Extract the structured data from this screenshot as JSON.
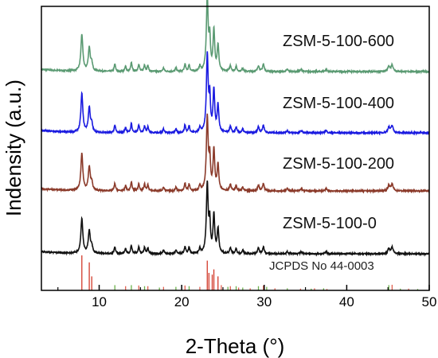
{
  "chart_data": {
    "type": "line",
    "title": "",
    "xlabel": "2-Theta (°)",
    "ylabel": "Indensity (a.u.)",
    "xlim": [
      3,
      50
    ],
    "xticks": [
      10,
      20,
      30,
      40,
      50
    ],
    "y_ticks_shown": false,
    "grid": false,
    "peaks": [
      {
        "x": 7.9,
        "h": 0.5,
        "w": 0.14
      },
      {
        "x": 8.8,
        "h": 0.32,
        "w": 0.14
      },
      {
        "x": 9.1,
        "h": 0.1,
        "w": 0.12
      },
      {
        "x": 11.9,
        "h": 0.1,
        "w": 0.1
      },
      {
        "x": 13.2,
        "h": 0.07,
        "w": 0.1
      },
      {
        "x": 13.9,
        "h": 0.12,
        "w": 0.1
      },
      {
        "x": 14.8,
        "h": 0.1,
        "w": 0.1
      },
      {
        "x": 15.5,
        "h": 0.09,
        "w": 0.1
      },
      {
        "x": 15.9,
        "h": 0.08,
        "w": 0.1
      },
      {
        "x": 17.8,
        "h": 0.05,
        "w": 0.1
      },
      {
        "x": 19.3,
        "h": 0.05,
        "w": 0.1
      },
      {
        "x": 20.4,
        "h": 0.1,
        "w": 0.1
      },
      {
        "x": 20.9,
        "h": 0.09,
        "w": 0.1
      },
      {
        "x": 22.2,
        "h": 0.07,
        "w": 0.1
      },
      {
        "x": 23.1,
        "h": 1.0,
        "w": 0.13
      },
      {
        "x": 23.4,
        "h": 0.42,
        "w": 0.1
      },
      {
        "x": 23.9,
        "h": 0.55,
        "w": 0.12
      },
      {
        "x": 24.4,
        "h": 0.35,
        "w": 0.12
      },
      {
        "x": 25.9,
        "h": 0.08,
        "w": 0.12
      },
      {
        "x": 26.6,
        "h": 0.07,
        "w": 0.1
      },
      {
        "x": 27.4,
        "h": 0.05,
        "w": 0.1
      },
      {
        "x": 29.3,
        "h": 0.08,
        "w": 0.12
      },
      {
        "x": 29.9,
        "h": 0.1,
        "w": 0.12
      },
      {
        "x": 32.8,
        "h": 0.03,
        "w": 0.12
      },
      {
        "x": 34.5,
        "h": 0.03,
        "w": 0.12
      },
      {
        "x": 37.5,
        "h": 0.03,
        "w": 0.12
      },
      {
        "x": 45.1,
        "h": 0.07,
        "w": 0.15
      },
      {
        "x": 45.5,
        "h": 0.09,
        "w": 0.15
      }
    ],
    "series": [
      {
        "name": "ZSM-5-100-600",
        "color": "#5a9a72",
        "offset": 3,
        "scale": 1.0
      },
      {
        "name": "ZSM-5-100-400",
        "color": "#1a1ae0",
        "offset": 2,
        "scale": 1.05
      },
      {
        "name": "ZSM-5-100-200",
        "color": "#8b3a2a",
        "offset": 1,
        "scale": 1.0
      },
      {
        "name": "ZSM-5-100-0",
        "color": "#111111",
        "offset": 0,
        "scale": 0.95
      }
    ],
    "reference": {
      "name": "JCPDS No 44-0003",
      "colors": [
        "#e06050",
        "#d23a2a",
        "#6ab04a"
      ],
      "lines": [
        {
          "x": 7.9,
          "h": 1.0
        },
        {
          "x": 8.8,
          "h": 0.8
        },
        {
          "x": 9.1,
          "h": 0.4
        },
        {
          "x": 11.9,
          "h": 0.15
        },
        {
          "x": 13.2,
          "h": 0.12
        },
        {
          "x": 13.9,
          "h": 0.15
        },
        {
          "x": 14.8,
          "h": 0.14
        },
        {
          "x": 15.5,
          "h": 0.12
        },
        {
          "x": 15.9,
          "h": 0.12
        },
        {
          "x": 17.3,
          "h": 0.08
        },
        {
          "x": 17.8,
          "h": 0.1
        },
        {
          "x": 19.3,
          "h": 0.1
        },
        {
          "x": 20.4,
          "h": 0.14
        },
        {
          "x": 20.9,
          "h": 0.12
        },
        {
          "x": 22.2,
          "h": 0.1
        },
        {
          "x": 23.1,
          "h": 0.85
        },
        {
          "x": 23.3,
          "h": 0.5
        },
        {
          "x": 23.7,
          "h": 0.45
        },
        {
          "x": 23.9,
          "h": 0.6
        },
        {
          "x": 24.4,
          "h": 0.4
        },
        {
          "x": 24.8,
          "h": 0.15
        },
        {
          "x": 25.6,
          "h": 0.1
        },
        {
          "x": 25.9,
          "h": 0.12
        },
        {
          "x": 26.6,
          "h": 0.12
        },
        {
          "x": 26.9,
          "h": 0.08
        },
        {
          "x": 27.4,
          "h": 0.08
        },
        {
          "x": 28.3,
          "h": 0.06
        },
        {
          "x": 29.3,
          "h": 0.12
        },
        {
          "x": 29.9,
          "h": 0.14
        },
        {
          "x": 30.3,
          "h": 0.1
        },
        {
          "x": 31.3,
          "h": 0.06
        },
        {
          "x": 32.8,
          "h": 0.06
        },
        {
          "x": 34.4,
          "h": 0.05
        },
        {
          "x": 35.7,
          "h": 0.05
        },
        {
          "x": 36.1,
          "h": 0.06
        },
        {
          "x": 37.2,
          "h": 0.06
        },
        {
          "x": 37.6,
          "h": 0.04
        },
        {
          "x": 45.1,
          "h": 0.15
        },
        {
          "x": 45.5,
          "h": 0.16
        },
        {
          "x": 46.5,
          "h": 0.05
        },
        {
          "x": 47.5,
          "h": 0.05
        },
        {
          "x": 48.6,
          "h": 0.04
        }
      ]
    }
  }
}
